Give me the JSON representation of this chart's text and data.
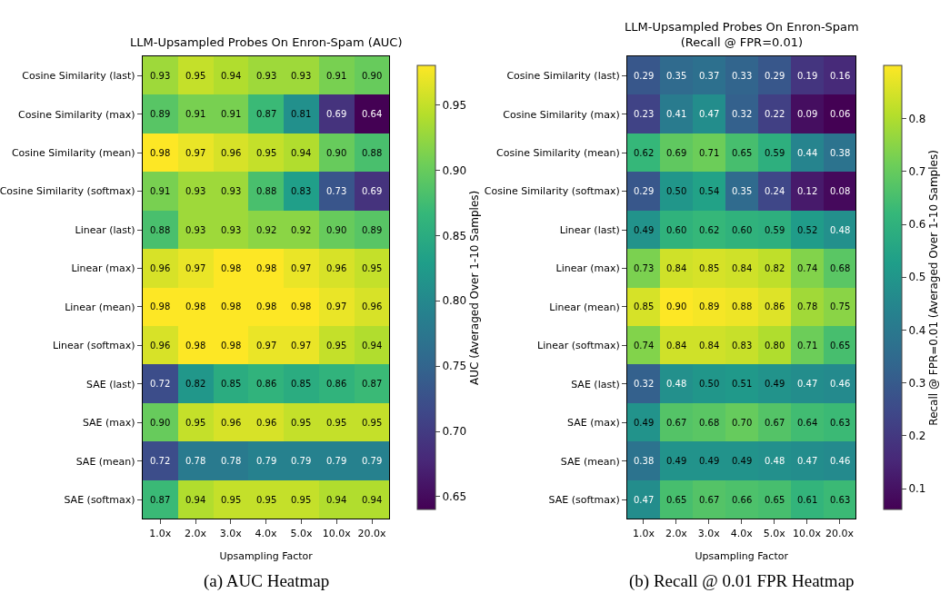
{
  "chart_data": [
    {
      "type": "heatmap",
      "title": "LLM-Upsampled Probes On Enron-Spam (AUC)",
      "xlabel": "Upsampling Factor",
      "clabel": "AUC (Averaged Over 1-10 Samples)",
      "categories": [
        "1.0x",
        "2.0x",
        "3.0x",
        "4.0x",
        "5.0x",
        "10.0x",
        "20.0x"
      ],
      "y_categories": [
        "Cosine Similarity (last)",
        "Cosine Similarity (max)",
        "Cosine Similarity (mean)",
        "Cosine Similarity (softmax)",
        "Linear (last)",
        "Linear (max)",
        "Linear (mean)",
        "Linear (softmax)",
        "SAE (last)",
        "SAE (max)",
        "SAE (mean)",
        "SAE (softmax)"
      ],
      "cells": [
        [
          0.93,
          0.95,
          0.94,
          0.93,
          0.93,
          0.91,
          0.9
        ],
        [
          0.89,
          0.91,
          0.91,
          0.87,
          0.81,
          0.69,
          0.64
        ],
        [
          0.98,
          0.97,
          0.96,
          0.95,
          0.94,
          0.9,
          0.88
        ],
        [
          0.91,
          0.93,
          0.93,
          0.88,
          0.83,
          0.73,
          0.69
        ],
        [
          0.88,
          0.93,
          0.93,
          0.92,
          0.92,
          0.9,
          0.89
        ],
        [
          0.96,
          0.97,
          0.98,
          0.98,
          0.97,
          0.96,
          0.95
        ],
        [
          0.98,
          0.98,
          0.98,
          0.98,
          0.98,
          0.97,
          0.96
        ],
        [
          0.96,
          0.98,
          0.98,
          0.97,
          0.97,
          0.95,
          0.94
        ],
        [
          0.72,
          0.82,
          0.85,
          0.86,
          0.85,
          0.86,
          0.87
        ],
        [
          0.9,
          0.95,
          0.96,
          0.96,
          0.95,
          0.95,
          0.95
        ],
        [
          0.72,
          0.78,
          0.78,
          0.79,
          0.79,
          0.79,
          0.79
        ],
        [
          0.87,
          0.94,
          0.95,
          0.95,
          0.95,
          0.94,
          0.94
        ]
      ],
      "cell_labels": [
        [
          "0.93",
          "0.95",
          "0.94",
          "0.93",
          "0.93",
          "0.91",
          "0.90"
        ],
        [
          "0.89",
          "0.91",
          "0.91",
          "0.87",
          "0.81",
          "0.69",
          "0.64"
        ],
        [
          "0.98",
          "0.97",
          "0.96",
          "0.95",
          "0.94",
          "0.90",
          "0.88"
        ],
        [
          "0.91",
          "0.93",
          "0.93",
          "0.88",
          "0.83",
          "0.73",
          "0.69"
        ],
        [
          "0.88",
          "0.93",
          "0.93",
          "0.92",
          "0.92",
          "0.90",
          "0.89"
        ],
        [
          "0.96",
          "0.97",
          "0.98",
          "0.98",
          "0.97",
          "0.96",
          "0.95"
        ],
        [
          "0.98",
          "0.98",
          "0.98",
          "0.98",
          "0.98",
          "0.97",
          "0.96"
        ],
        [
          "0.96",
          "0.98",
          "0.98",
          "0.97",
          "0.97",
          "0.95",
          "0.94"
        ],
        [
          "0.72",
          "0.82",
          "0.85",
          "0.86",
          "0.85",
          "0.86",
          "0.87"
        ],
        [
          "0.90",
          "0.95",
          "0.96",
          "0.96",
          "0.95",
          "0.95",
          "0.95"
        ],
        [
          "0.72",
          "0.78",
          "0.78",
          "0.79",
          "0.79",
          "0.79",
          "0.79"
        ],
        [
          "0.87",
          "0.94",
          "0.95",
          "0.95",
          "0.95",
          "0.94",
          "0.94"
        ]
      ],
      "clim": [
        0.64,
        0.98
      ],
      "cticks": [
        0.65,
        {
          "value": 0.7,
          "label": "0.70"
        },
        0.75,
        {
          "value": 0.8,
          "label": "0.80"
        },
        0.85,
        {
          "value": 0.9,
          "label": "0.90"
        },
        0.95
      ],
      "annotations": [
        "(a) AUC Heatmap"
      ]
    },
    {
      "type": "heatmap",
      "title": "LLM-Upsampled Probes On Enron-Spam\n(Recall @ FPR=0.01)",
      "xlabel": "Upsampling Factor",
      "clabel": "Recall @ FPR=0.01 (Averaged Over 1-10 Samples)",
      "categories": [
        "1.0x",
        "2.0x",
        "3.0x",
        "4.0x",
        "5.0x",
        "10.0x",
        "20.0x"
      ],
      "y_categories": [
        "Cosine Similarity (last)",
        "Cosine Similarity (max)",
        "Cosine Similarity (mean)",
        "Cosine Similarity (softmax)",
        "Linear (last)",
        "Linear (max)",
        "Linear (mean)",
        "Linear (softmax)",
        "SAE (last)",
        "SAE (max)",
        "SAE (mean)",
        "SAE (softmax)"
      ],
      "cells": [
        [
          0.29,
          0.35,
          0.37,
          0.33,
          0.29,
          0.19,
          0.16
        ],
        [
          0.23,
          0.41,
          0.47,
          0.32,
          0.22,
          0.09,
          0.06
        ],
        [
          0.62,
          0.69,
          0.71,
          0.65,
          0.59,
          0.44,
          0.38
        ],
        [
          0.29,
          0.5,
          0.54,
          0.35,
          0.24,
          0.12,
          0.08
        ],
        [
          0.49,
          0.6,
          0.62,
          0.6,
          0.59,
          0.52,
          0.48
        ],
        [
          0.73,
          0.84,
          0.85,
          0.84,
          0.82,
          0.74,
          0.68
        ],
        [
          0.85,
          0.9,
          0.89,
          0.88,
          0.86,
          0.78,
          0.75
        ],
        [
          0.74,
          0.84,
          0.84,
          0.83,
          0.8,
          0.71,
          0.65
        ],
        [
          0.32,
          0.48,
          0.5,
          0.51,
          0.49,
          0.47,
          0.46
        ],
        [
          0.49,
          0.67,
          0.68,
          0.7,
          0.67,
          0.64,
          0.63
        ],
        [
          0.38,
          0.49,
          0.49,
          0.49,
          0.48,
          0.47,
          0.46
        ],
        [
          0.47,
          0.65,
          0.67,
          0.66,
          0.65,
          0.61,
          0.63
        ]
      ],
      "cell_labels": [
        [
          "0.29",
          "0.35",
          "0.37",
          "0.33",
          "0.29",
          "0.19",
          "0.16"
        ],
        [
          "0.23",
          "0.41",
          "0.47",
          "0.32",
          "0.22",
          "0.09",
          "0.06"
        ],
        [
          "0.62",
          "0.69",
          "0.71",
          "0.65",
          "0.59",
          "0.44",
          "0.38"
        ],
        [
          "0.29",
          "0.50",
          "0.54",
          "0.35",
          "0.24",
          "0.12",
          "0.08"
        ],
        [
          "0.49",
          "0.60",
          "0.62",
          "0.60",
          "0.59",
          "0.52",
          "0.48"
        ],
        [
          "0.73",
          "0.84",
          "0.85",
          "0.84",
          "0.82",
          "0.74",
          "0.68"
        ],
        [
          "0.85",
          "0.90",
          "0.89",
          "0.88",
          "0.86",
          "0.78",
          "0.75"
        ],
        [
          "0.74",
          "0.84",
          "0.84",
          "0.83",
          "0.80",
          "0.71",
          "0.65"
        ],
        [
          "0.32",
          "0.48",
          "0.50",
          "0.51",
          "0.49",
          "0.47",
          "0.46"
        ],
        [
          "0.49",
          "0.67",
          "0.68",
          "0.70",
          "0.67",
          "0.64",
          "0.63"
        ],
        [
          "0.38",
          "0.49",
          "0.49",
          "0.49",
          "0.48",
          "0.47",
          "0.46"
        ],
        [
          "0.47",
          "0.65",
          "0.67",
          "0.66",
          "0.65",
          "0.61",
          "0.63"
        ]
      ],
      "clim": [
        0.06,
        0.9
      ],
      "cticks": [
        0.1,
        0.2,
        0.3,
        0.4,
        0.5,
        0.6,
        0.7,
        0.8
      ],
      "annotations": [
        "(b) Recall @ 0.01 FPR Heatmap"
      ]
    }
  ]
}
